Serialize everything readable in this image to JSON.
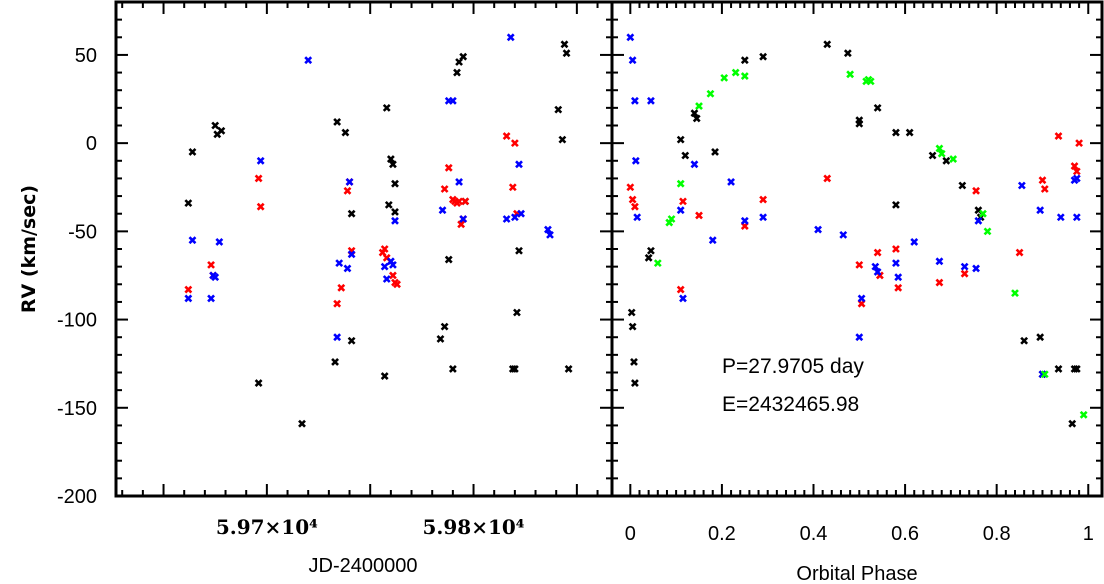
{
  "chart_data": [
    {
      "type": "scatter",
      "panel": "left",
      "xlabel": "JD-2400000",
      "ylabel": "RV (km/sec)",
      "xlim": [
        59627,
        59867
      ],
      "ylim": [
        -200,
        80
      ],
      "x_ticks": [
        {
          "value": 59700,
          "label": "5.97×10⁴"
        },
        {
          "value": 59800,
          "label": "5.98×10⁴"
        }
      ],
      "y_ticks": [
        {
          "value": 50,
          "label": "50"
        },
        {
          "value": 0,
          "label": "0"
        },
        {
          "value": -50,
          "label": "-50"
        },
        {
          "value": -100,
          "label": "-100"
        },
        {
          "value": -150,
          "label": "-150"
        },
        {
          "value": -200,
          "label": "-200"
        }
      ],
      "marker": "x",
      "series": [
        {
          "color": "#000000",
          "x": [
            59662,
            59664,
            59675,
            59676,
            59678,
            59696,
            59717,
            59733,
            59734,
            59738,
            59741,
            59741,
            59757,
            59758,
            59759,
            59760,
            59761,
            59762,
            59762,
            59784,
            59786,
            59788,
            59790,
            59792,
            59793,
            59795,
            59796,
            59819,
            59820,
            59821,
            59822,
            59841,
            59843,
            59844,
            59845,
            59846
          ],
          "y": [
            -34,
            -5,
            10,
            5,
            7,
            -136,
            -159,
            -124,
            12,
            6,
            -40,
            -112,
            -132,
            20,
            -35,
            -9,
            -12,
            -23,
            -39,
            -111,
            -104,
            -66,
            -128,
            40,
            46,
            49,
            -33,
            -128,
            -128,
            -96,
            -61,
            19,
            2,
            56,
            51,
            -128
          ]
        },
        {
          "color": "#ff0000",
          "x": [
            59662,
            59673,
            59674,
            59696,
            59697,
            59734,
            59736,
            59739,
            59740,
            59741,
            59756,
            59757,
            59758,
            59761,
            59762,
            59763,
            59786,
            59788,
            59790,
            59791,
            59792,
            59793,
            59794,
            59795,
            59796,
            59816,
            59819,
            59820,
            59821
          ],
          "y": [
            -83,
            -69,
            -75,
            -20,
            -36,
            -91,
            -82,
            -27,
            -22,
            -61,
            -62,
            -60,
            -65,
            -75,
            -79,
            -80,
            -26,
            -14,
            -32,
            -33,
            -34,
            -33,
            -46,
            -43,
            -33,
            4,
            -25,
            0,
            -40
          ]
        },
        {
          "color": "#0000ff",
          "x": [
            59662,
            59664,
            59673,
            59674,
            59675,
            59677,
            59697,
            59720,
            59734,
            59735,
            59739,
            59740,
            59741,
            59757,
            59758,
            59760,
            59761,
            59762,
            59785,
            59788,
            59790,
            59793,
            59795,
            59816,
            59818,
            59820,
            59822,
            59823,
            59836,
            59837
          ],
          "y": [
            -88,
            -55,
            -88,
            -75,
            -76,
            -56,
            -10,
            47,
            -110,
            -68,
            -71,
            -22,
            -63,
            -70,
            -77,
            -67,
            -69,
            -44,
            -38,
            24,
            24,
            -22,
            -43,
            -43,
            60,
            -42,
            -12,
            -40,
            -49,
            -52
          ]
        }
      ]
    },
    {
      "type": "scatter",
      "panel": "right",
      "xlabel": "Orbital Phase",
      "xlim": [
        -0.04,
        1.03
      ],
      "ylim": [
        -200,
        80
      ],
      "x_ticks": [
        0,
        0.2,
        0.4,
        0.6,
        0.8,
        1
      ],
      "x_tick_labels": [
        "0",
        "0.2",
        "0.4",
        "0.6",
        "0.8",
        "1"
      ],
      "annotations": [
        "P=27.9705 day",
        "E=2432465.98"
      ],
      "marker": "x",
      "series": [
        {
          "color": "#000000",
          "x": [
            0.003,
            0.005,
            0.008,
            0.01,
            0.04,
            0.045,
            0.11,
            0.12,
            0.14,
            0.145,
            0.185,
            0.25,
            0.29,
            0.43,
            0.475,
            0.5,
            0.5,
            0.54,
            0.58,
            0.58,
            0.61,
            0.66,
            0.69,
            0.725,
            0.76,
            0.765,
            0.86,
            0.895,
            0.9,
            0.935,
            0.965,
            0.97,
            0.975
          ],
          "y": [
            -96,
            -104,
            -124,
            -136,
            -65,
            -61,
            2,
            -7,
            17,
            14,
            -5,
            47,
            49,
            56,
            51,
            11,
            13,
            20,
            -35,
            6,
            6,
            -7,
            -10,
            -24,
            -38,
            -42,
            -112,
            -110,
            -131,
            -128,
            -159,
            -128,
            -128
          ]
        },
        {
          "color": "#ff0000",
          "x": [
            0.0,
            0.005,
            0.01,
            0.11,
            0.115,
            0.15,
            0.25,
            0.29,
            0.43,
            0.5,
            0.505,
            0.54,
            0.545,
            0.58,
            0.585,
            0.675,
            0.73,
            0.755,
            0.85,
            0.9,
            0.905,
            0.935,
            0.97,
            0.975,
            0.98
          ],
          "y": [
            -25,
            -32,
            -36,
            -83,
            -33,
            -41,
            -47,
            -32,
            -20,
            -69,
            -91,
            -62,
            -75,
            -60,
            -82,
            -79,
            -74,
            -27,
            -62,
            -21,
            -26,
            4,
            -13,
            -16,
            0
          ]
        },
        {
          "color": "#0000ff",
          "x": [
            0.0,
            0.005,
            0.01,
            0.012,
            0.015,
            0.045,
            0.11,
            0.115,
            0.14,
            0.18,
            0.22,
            0.25,
            0.29,
            0.41,
            0.465,
            0.5,
            0.505,
            0.535,
            0.54,
            0.58,
            0.585,
            0.62,
            0.675,
            0.73,
            0.755,
            0.76,
            0.855,
            0.895,
            0.9,
            0.94,
            0.97,
            0.975,
            0.975
          ],
          "y": [
            60,
            47,
            24,
            -10,
            -42,
            24,
            -38,
            -88,
            -12,
            -55,
            -22,
            -44,
            -42,
            -49,
            -52,
            -110,
            -88,
            -70,
            -73,
            -68,
            -76,
            -56,
            -67,
            -70,
            -71,
            -44,
            -24,
            -38,
            -131,
            -42,
            -21,
            -20,
            -42
          ]
        },
        {
          "color": "#00ff00",
          "x": [
            0.06,
            0.085,
            0.09,
            0.11,
            0.15,
            0.175,
            0.205,
            0.23,
            0.25,
            0.48,
            0.515,
            0.52,
            0.525,
            0.675,
            0.68,
            0.705,
            0.77,
            0.78,
            0.84,
            0.905,
            0.99
          ],
          "y": [
            -68,
            -45,
            -43,
            -23,
            21,
            28,
            37,
            40,
            38,
            39,
            35,
            36,
            35,
            -3,
            -6,
            -9,
            -40,
            -50,
            -85,
            -131,
            -154
          ]
        }
      ]
    }
  ]
}
